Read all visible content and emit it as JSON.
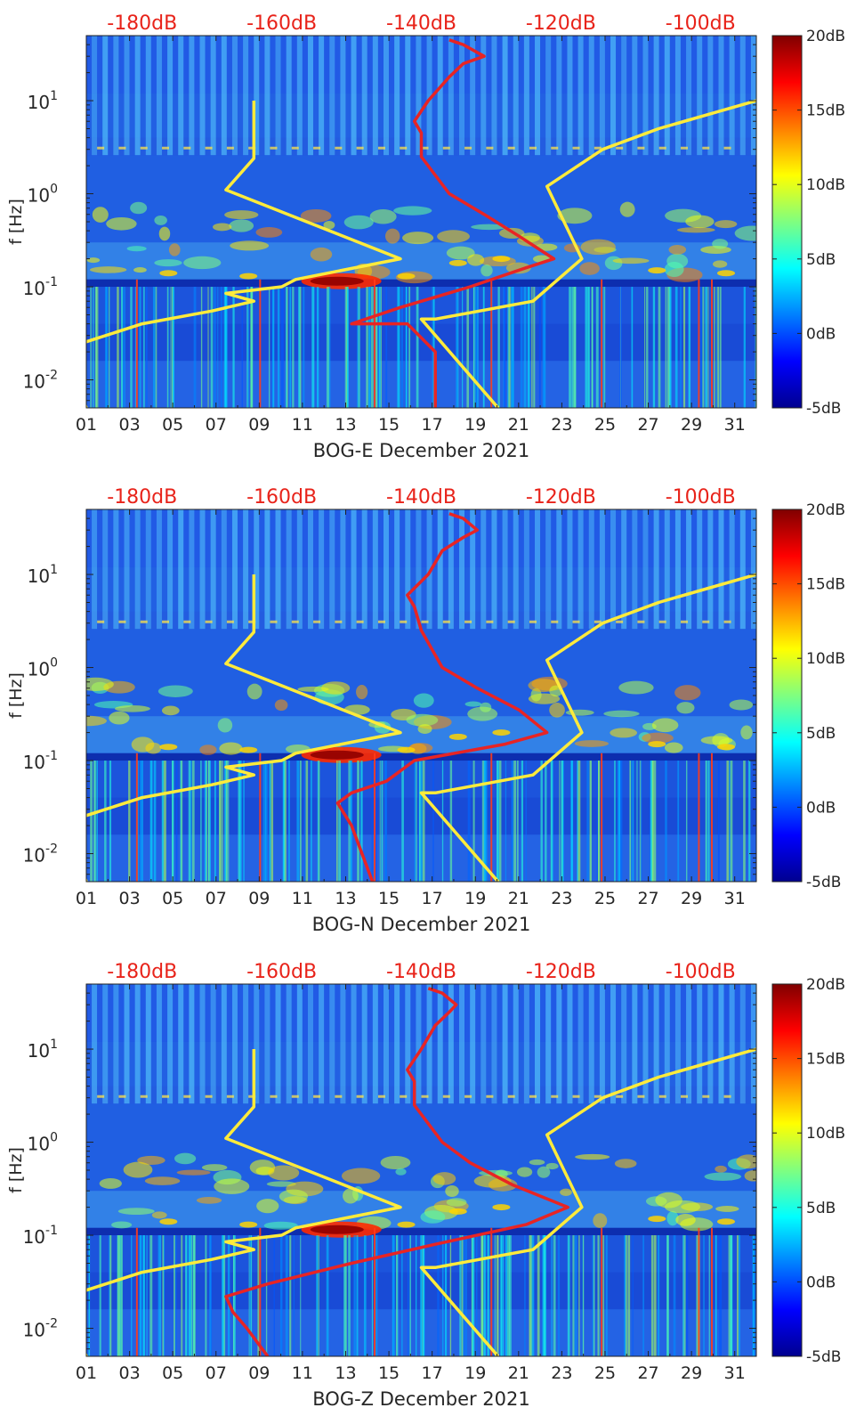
{
  "chart_data": [
    {
      "type": "heatmap",
      "station": "BOG-E",
      "xlabel": "BOG-E December 2021",
      "ylabel": "f [Hz]",
      "x_ticks": [
        "01",
        "03",
        "05",
        "07",
        "09",
        "11",
        "13",
        "15",
        "17",
        "19",
        "21",
        "23",
        "25",
        "27",
        "29",
        "31"
      ],
      "x_range_days": [
        1,
        32
      ],
      "y_scale": "log",
      "y_range_hz": [
        0.005,
        50
      ],
      "y_ticks": [
        {
          "value": 0.01,
          "base": "10",
          "exp": "-2"
        },
        {
          "value": 0.1,
          "base": "10",
          "exp": "-1"
        },
        {
          "value": 1,
          "base": "10",
          "exp": "0"
        },
        {
          "value": 10,
          "base": "10",
          "exp": "1"
        }
      ],
      "top_axis_labels": [
        "-180dB",
        "-160dB",
        "-140dB",
        "-120dB",
        "-100dB"
      ],
      "top_axis_range_db": [
        -188,
        -92
      ],
      "colorbar": {
        "range_db": [
          -5,
          20
        ],
        "ticks": [
          "20dB",
          "15dB",
          "10dB",
          "5dB",
          "0dB",
          "-5dB"
        ],
        "colormap": "jet"
      },
      "noise_model_curves": {
        "color": "#ffeb3b",
        "segments": [
          [
            [
              -188,
              0.005
            ],
            [
              -189.5,
              0.01
            ],
            [
              -188.5,
              0.025
            ],
            [
              -180,
              0.04
            ],
            [
              -170,
              0.055
            ],
            [
              -164,
              0.07
            ],
            [
              -168,
              0.085
            ],
            [
              -160,
              0.1
            ],
            [
              -158,
              0.12
            ],
            [
              -143,
              0.2
            ],
            [
              -168,
              1.1
            ],
            [
              -164,
              2.4
            ],
            [
              -164,
              10
            ]
          ],
          [
            [
              -129,
              0.005
            ],
            [
              -140,
              0.045
            ],
            [
              -138,
              0.045
            ],
            [
              -124,
              0.07
            ],
            [
              -117,
              0.2
            ],
            [
              -122,
              1.2
            ],
            [
              -114,
              3.0
            ],
            [
              -106,
              5.0
            ],
            [
              -92,
              10
            ]
          ]
        ]
      },
      "psd_curve": {
        "color": "#e82424",
        "points": [
          [
            -138,
            0.005
          ],
          [
            -138,
            0.02
          ],
          [
            -142,
            0.04
          ],
          [
            -150,
            0.04
          ],
          [
            -143,
            0.06
          ],
          [
            -133,
            0.1
          ],
          [
            -125,
            0.16
          ],
          [
            -121,
            0.2
          ],
          [
            -126,
            0.35
          ],
          [
            -131,
            0.6
          ],
          [
            -136,
            1.0
          ],
          [
            -140,
            2.5
          ],
          [
            -140,
            4.5
          ],
          [
            -141,
            6.0
          ],
          [
            -139,
            10
          ],
          [
            -136,
            18
          ],
          [
            -134,
            25
          ],
          [
            -131,
            30
          ],
          [
            -134,
            40
          ],
          [
            -136,
            45
          ]
        ]
      }
    },
    {
      "type": "heatmap",
      "station": "BOG-N",
      "xlabel": "BOG-N December 2021",
      "ylabel": "f [Hz]",
      "x_ticks": [
        "01",
        "03",
        "05",
        "07",
        "09",
        "11",
        "13",
        "15",
        "17",
        "19",
        "21",
        "23",
        "25",
        "27",
        "29",
        "31"
      ],
      "x_range_days": [
        1,
        32
      ],
      "y_scale": "log",
      "y_range_hz": [
        0.005,
        50
      ],
      "y_ticks": [
        {
          "value": 0.01,
          "base": "10",
          "exp": "-2"
        },
        {
          "value": 0.1,
          "base": "10",
          "exp": "-1"
        },
        {
          "value": 1,
          "base": "10",
          "exp": "0"
        },
        {
          "value": 10,
          "base": "10",
          "exp": "1"
        }
      ],
      "top_axis_labels": [
        "-180dB",
        "-160dB",
        "-140dB",
        "-120dB",
        "-100dB"
      ],
      "top_axis_range_db": [
        -188,
        -92
      ],
      "colorbar": {
        "range_db": [
          -5,
          20
        ],
        "ticks": [
          "20dB",
          "15dB",
          "10dB",
          "5dB",
          "0dB",
          "-5dB"
        ],
        "colormap": "jet"
      },
      "noise_model_curves": {
        "color": "#ffeb3b",
        "segments": [
          [
            [
              -188,
              0.005
            ],
            [
              -189.5,
              0.01
            ],
            [
              -188.5,
              0.025
            ],
            [
              -180,
              0.04
            ],
            [
              -170,
              0.055
            ],
            [
              -164,
              0.07
            ],
            [
              -168,
              0.085
            ],
            [
              -160,
              0.1
            ],
            [
              -158,
              0.12
            ],
            [
              -143,
              0.2
            ],
            [
              -168,
              1.1
            ],
            [
              -164,
              2.4
            ],
            [
              -164,
              10
            ]
          ],
          [
            [
              -129,
              0.005
            ],
            [
              -140,
              0.045
            ],
            [
              -138,
              0.045
            ],
            [
              -124,
              0.07
            ],
            [
              -117,
              0.2
            ],
            [
              -122,
              1.2
            ],
            [
              -114,
              3.0
            ],
            [
              -106,
              5.0
            ],
            [
              -92,
              10
            ]
          ]
        ]
      },
      "psd_curve": {
        "color": "#e82424",
        "points": [
          [
            -147,
            0.005
          ],
          [
            -150,
            0.02
          ],
          [
            -152,
            0.035
          ],
          [
            -150,
            0.045
          ],
          [
            -145,
            0.06
          ],
          [
            -141,
            0.1
          ],
          [
            -128,
            0.15
          ],
          [
            -122,
            0.2
          ],
          [
            -126,
            0.35
          ],
          [
            -132,
            0.6
          ],
          [
            -137,
            1.0
          ],
          [
            -140,
            2.5
          ],
          [
            -141,
            4.5
          ],
          [
            -142,
            6.0
          ],
          [
            -139,
            10
          ],
          [
            -137,
            18
          ],
          [
            -134,
            25
          ],
          [
            -132,
            30
          ],
          [
            -134,
            40
          ],
          [
            -136,
            45
          ]
        ]
      }
    },
    {
      "type": "heatmap",
      "station": "BOG-Z",
      "xlabel": "BOG-Z December 2021",
      "ylabel": "f [Hz]",
      "x_ticks": [
        "01",
        "03",
        "05",
        "07",
        "09",
        "11",
        "13",
        "15",
        "17",
        "19",
        "21",
        "23",
        "25",
        "27",
        "29",
        "31"
      ],
      "x_range_days": [
        1,
        32
      ],
      "y_scale": "log",
      "y_range_hz": [
        0.005,
        50
      ],
      "y_ticks": [
        {
          "value": 0.01,
          "base": "10",
          "exp": "-2"
        },
        {
          "value": 0.1,
          "base": "10",
          "exp": "-1"
        },
        {
          "value": 1,
          "base": "10",
          "exp": "0"
        },
        {
          "value": 10,
          "base": "10",
          "exp": "1"
        }
      ],
      "top_axis_labels": [
        "-180dB",
        "-160dB",
        "-140dB",
        "-120dB",
        "-100dB"
      ],
      "top_axis_range_db": [
        -188,
        -92
      ],
      "colorbar": {
        "range_db": [
          -5,
          20
        ],
        "ticks": [
          "20dB",
          "15dB",
          "10dB",
          "5dB",
          "0dB",
          "-5dB"
        ],
        "colormap": "jet"
      },
      "noise_model_curves": {
        "color": "#ffeb3b",
        "segments": [
          [
            [
              -188,
              0.005
            ],
            [
              -189.5,
              0.01
            ],
            [
              -188.5,
              0.025
            ],
            [
              -180,
              0.04
            ],
            [
              -170,
              0.055
            ],
            [
              -164,
              0.07
            ],
            [
              -168,
              0.085
            ],
            [
              -160,
              0.1
            ],
            [
              -158,
              0.12
            ],
            [
              -143,
              0.2
            ],
            [
              -168,
              1.1
            ],
            [
              -164,
              2.4
            ],
            [
              -164,
              10
            ]
          ],
          [
            [
              -129,
              0.005
            ],
            [
              -140,
              0.045
            ],
            [
              -138,
              0.045
            ],
            [
              -124,
              0.07
            ],
            [
              -117,
              0.2
            ],
            [
              -122,
              1.2
            ],
            [
              -114,
              3.0
            ],
            [
              -106,
              5.0
            ],
            [
              -92,
              10
            ]
          ]
        ]
      },
      "psd_curve": {
        "color": "#e82424",
        "points": [
          [
            -162,
            0.005
          ],
          [
            -165,
            0.01
          ],
          [
            -167,
            0.015
          ],
          [
            -168,
            0.022
          ],
          [
            -162,
            0.03
          ],
          [
            -150,
            0.05
          ],
          [
            -138,
            0.08
          ],
          [
            -125,
            0.13
          ],
          [
            -119,
            0.2
          ],
          [
            -127,
            0.35
          ],
          [
            -133,
            0.6
          ],
          [
            -137,
            1.0
          ],
          [
            -141,
            2.5
          ],
          [
            -141,
            4.5
          ],
          [
            -142,
            6.0
          ],
          [
            -140,
            10
          ],
          [
            -138,
            18
          ],
          [
            -136,
            25
          ],
          [
            -135,
            30
          ],
          [
            -137,
            40
          ],
          [
            -139,
            45
          ]
        ]
      }
    }
  ]
}
